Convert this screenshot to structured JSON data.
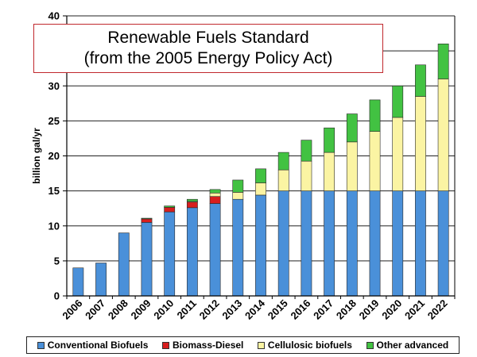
{
  "chart_data": {
    "type": "bar",
    "stacked": true,
    "title_lines": [
      "Renewable Fuels Standard",
      "(from the 2005 Energy Policy Act)"
    ],
    "xlabel": "",
    "ylabel": "billion gal/yr",
    "ylim": [
      0,
      40
    ],
    "yticks": [
      0,
      5,
      10,
      15,
      20,
      25,
      30,
      35,
      40
    ],
    "grid": true,
    "legend_position": "bottom",
    "categories": [
      "2006",
      "2007",
      "2008",
      "2009",
      "2010",
      "2011",
      "2012",
      "2013",
      "2014",
      "2015",
      "2016",
      "2017",
      "2018",
      "2019",
      "2020",
      "2021",
      "2022"
    ],
    "series": [
      {
        "name": "Conventional Biofuels",
        "color": "#4a90d9",
        "values": [
          4.0,
          4.7,
          9.0,
          10.5,
          12.0,
          12.6,
          13.2,
          13.8,
          14.4,
          15.0,
          15.0,
          15.0,
          15.0,
          15.0,
          15.0,
          15.0,
          15.0
        ]
      },
      {
        "name": "Biomass-Diesel",
        "color": "#d81e1e",
        "values": [
          0,
          0,
          0,
          0.5,
          0.65,
          0.8,
          1.0,
          0,
          0,
          0,
          0,
          0,
          0,
          0,
          0,
          0,
          0
        ]
      },
      {
        "name": "Cellulosic biofuels",
        "color": "#fbf4a3",
        "values": [
          0,
          0,
          0,
          0,
          0,
          0.1,
          0.5,
          1.0,
          1.75,
          3.0,
          4.25,
          5.5,
          7.0,
          8.5,
          10.5,
          13.5,
          16.0
        ]
      },
      {
        "name": "Other advanced",
        "color": "#42c242",
        "values": [
          0,
          0,
          0,
          0.1,
          0.2,
          0.3,
          0.5,
          1.75,
          2.0,
          2.5,
          3.0,
          3.5,
          4.0,
          4.5,
          4.5,
          4.5,
          5.0
        ]
      }
    ]
  }
}
